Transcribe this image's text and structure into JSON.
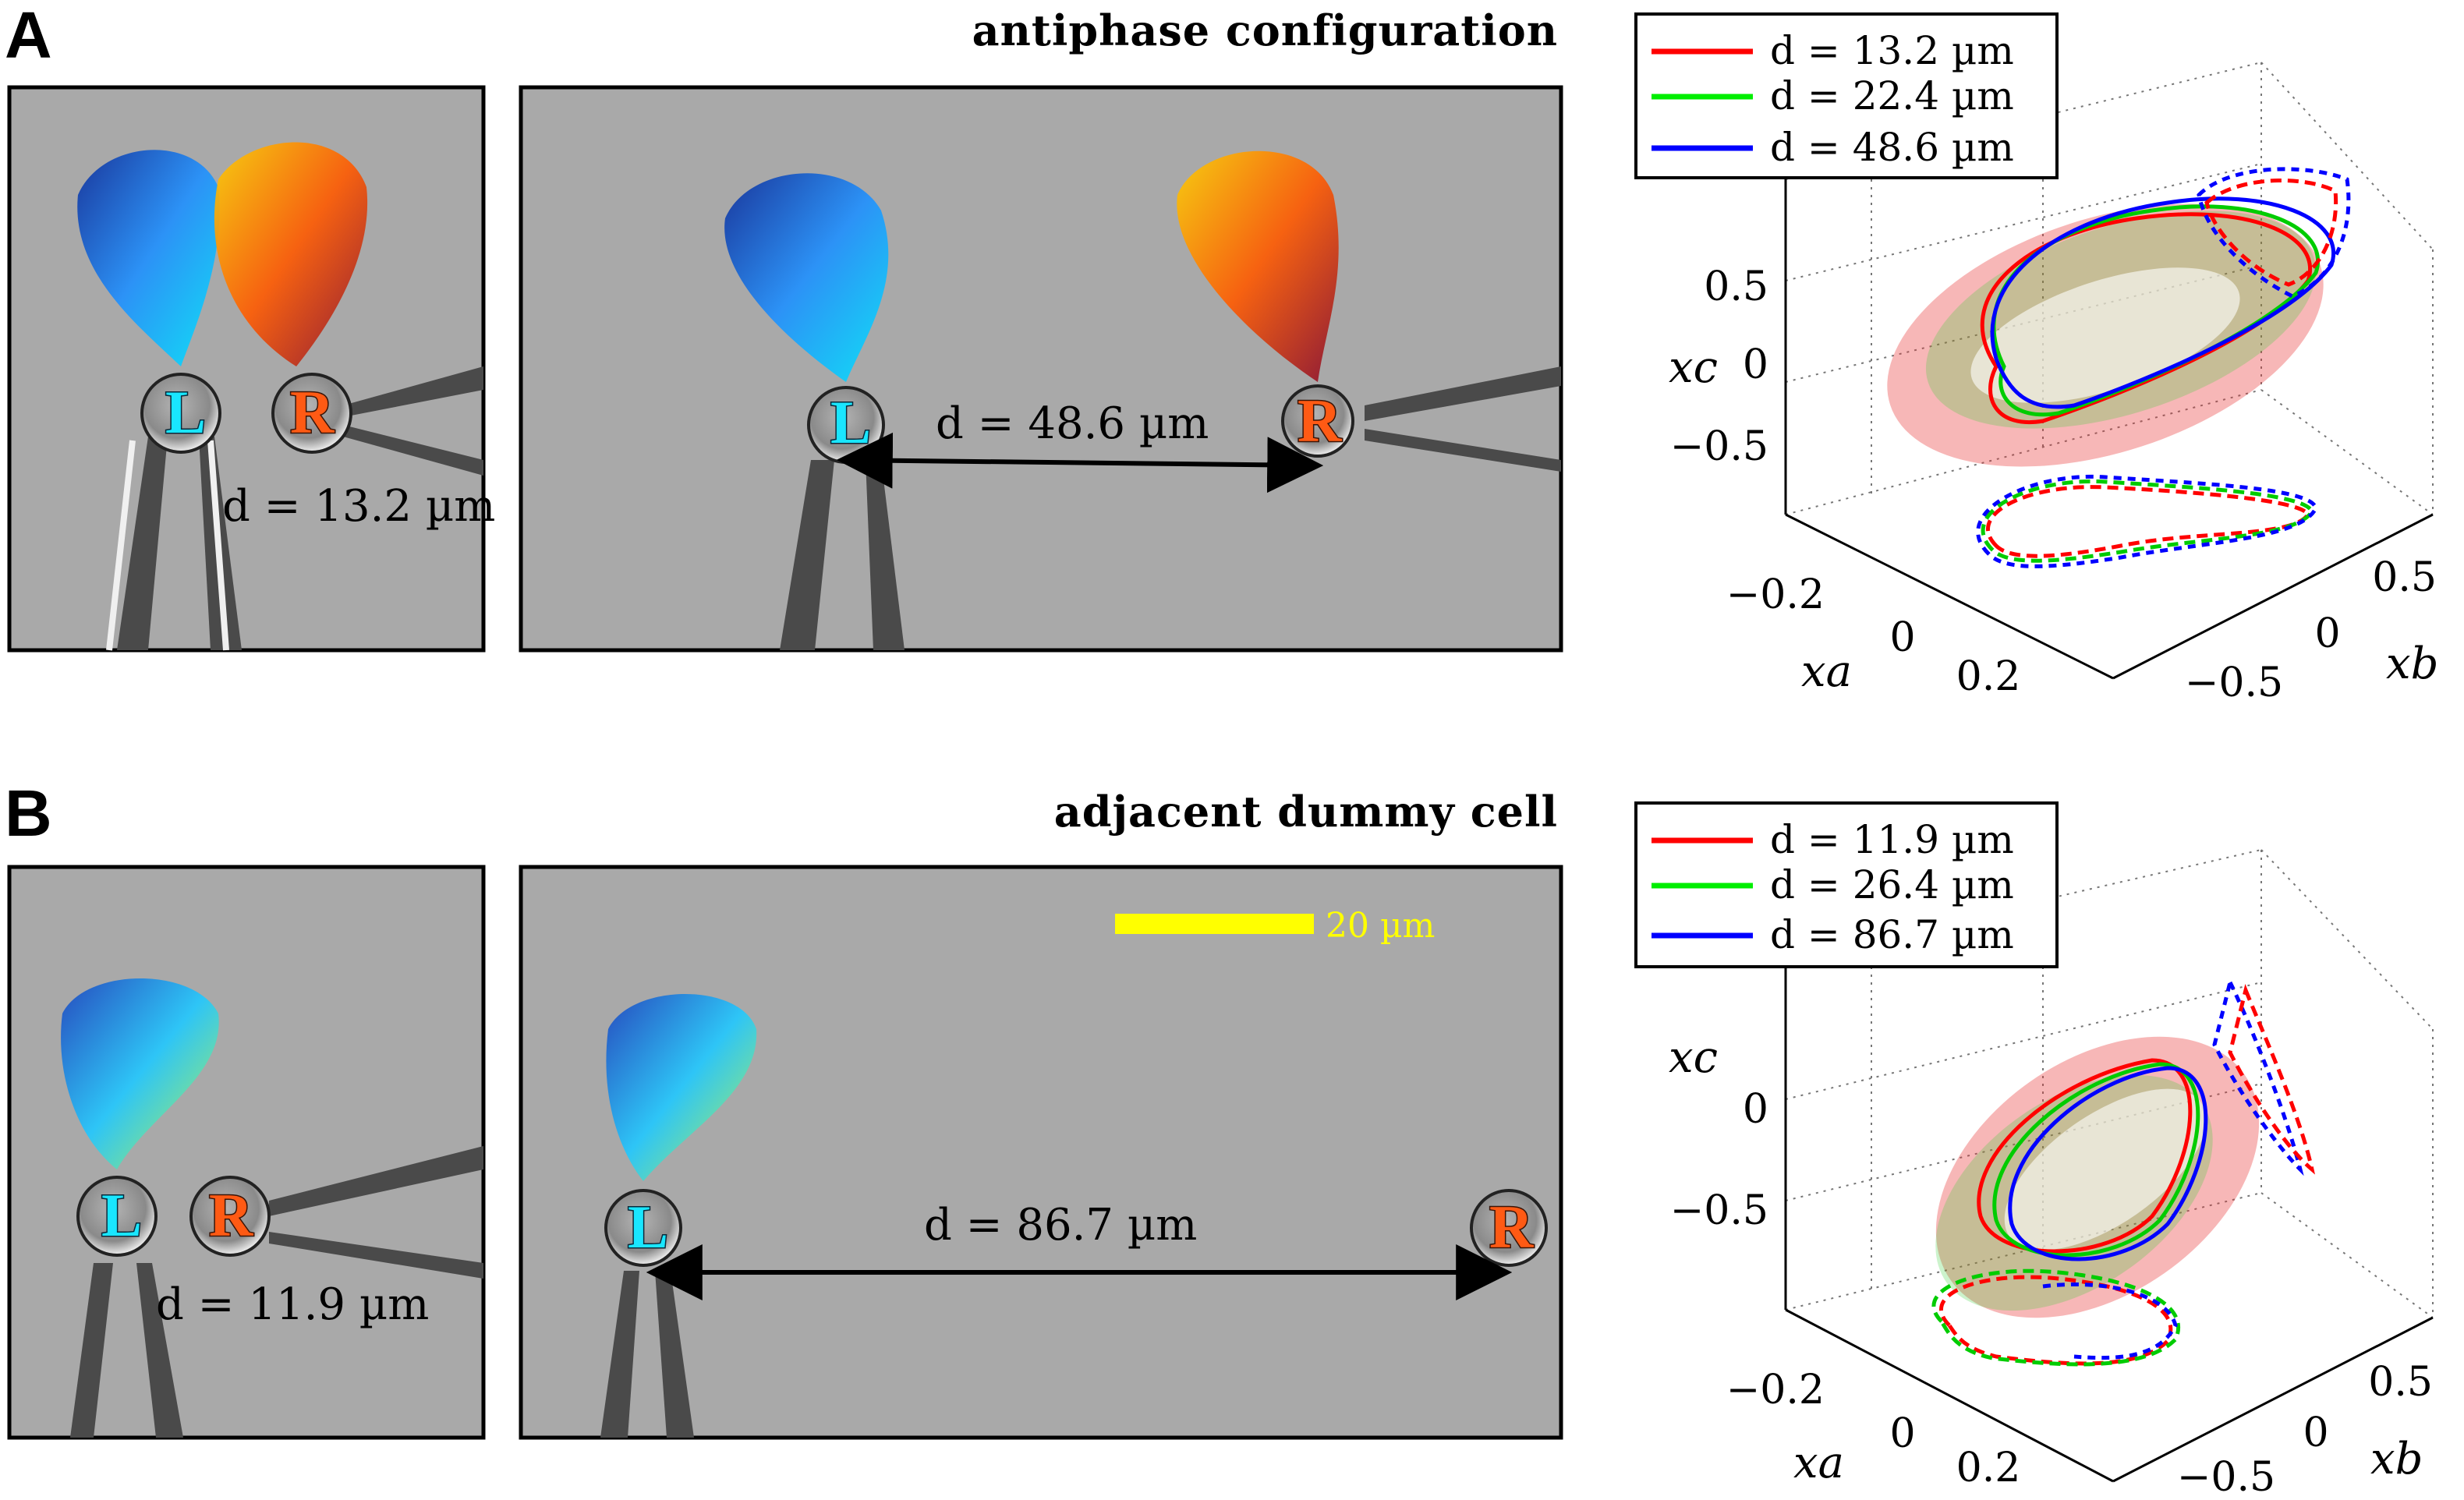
{
  "panels": [
    {
      "letter": "A",
      "title": "antiphase configuration",
      "near": {
        "distance_label": "d = 13.2 µm",
        "left_cell": "L",
        "right_cell": "R"
      },
      "far": {
        "distance_label": "d = 48.6 µm",
        "left_cell": "L",
        "right_cell": "R"
      },
      "chart": {
        "legend": [
          "d = 13.2 µm",
          "d = 22.4 µm",
          "d = 48.6 µm"
        ],
        "colors": [
          "#ff0000",
          "#00ee00",
          "#0000ff"
        ],
        "zticks": [
          "0.5",
          "0",
          "−0.5"
        ],
        "aticks": [
          "−0.2",
          "0",
          "0.2"
        ],
        "bticks": [
          "0.5",
          "0",
          "−0.5"
        ],
        "xlabel_a": "xa",
        "xlabel_b": "xb",
        "xlabel_c": "xc"
      }
    },
    {
      "letter": "B",
      "title": "adjacent dummy cell",
      "near": {
        "distance_label": "d = 11.9 µm",
        "left_cell": "L",
        "right_cell": "R"
      },
      "far": {
        "distance_label": "d = 86.7 µm",
        "left_cell": "L",
        "right_cell": "R",
        "scalebar": "20 µm"
      },
      "chart": {
        "legend": [
          "d = 11.9 µm",
          "d = 26.4 µm",
          "d = 86.7 µm"
        ],
        "colors": [
          "#ff0000",
          "#00ee00",
          "#0000ff"
        ],
        "zticks": [
          "0",
          "−0.5"
        ],
        "aticks": [
          "−0.2",
          "0",
          "0.2"
        ],
        "bticks": [
          "0.5",
          "0",
          "−0.5"
        ],
        "xlabel_a": "xa",
        "xlabel_b": "xb",
        "xlabel_c": "xc"
      }
    }
  ],
  "chart_data": [
    {
      "type": "scatter",
      "title": "",
      "projection": "3d",
      "axes": {
        "x": "x_a",
        "y": "x_b",
        "z": "x_c"
      },
      "xlim": [
        -0.3,
        0.3
      ],
      "ylim": [
        -0.6,
        0.6
      ],
      "zlim": [
        -0.8,
        0.8
      ],
      "grid": true,
      "legend_position": "top-left",
      "series": [
        {
          "name": "d = 13.2 µm",
          "color": "#ff0000"
        },
        {
          "name": "d = 22.4 µm",
          "color": "#00ee00"
        },
        {
          "name": "d = 48.6 µm",
          "color": "#0000ff"
        }
      ]
    },
    {
      "type": "scatter",
      "title": "",
      "projection": "3d",
      "axes": {
        "x": "x_a",
        "y": "x_b",
        "z": "x_c"
      },
      "xlim": [
        -0.3,
        0.3
      ],
      "ylim": [
        -0.6,
        0.6
      ],
      "zlim": [
        -0.8,
        0.4
      ],
      "grid": true,
      "legend_position": "top-left",
      "series": [
        {
          "name": "d = 11.9 µm",
          "color": "#ff0000"
        },
        {
          "name": "d = 26.4 µm",
          "color": "#00ee00"
        },
        {
          "name": "d = 86.7 µm",
          "color": "#0000ff"
        }
      ]
    }
  ]
}
